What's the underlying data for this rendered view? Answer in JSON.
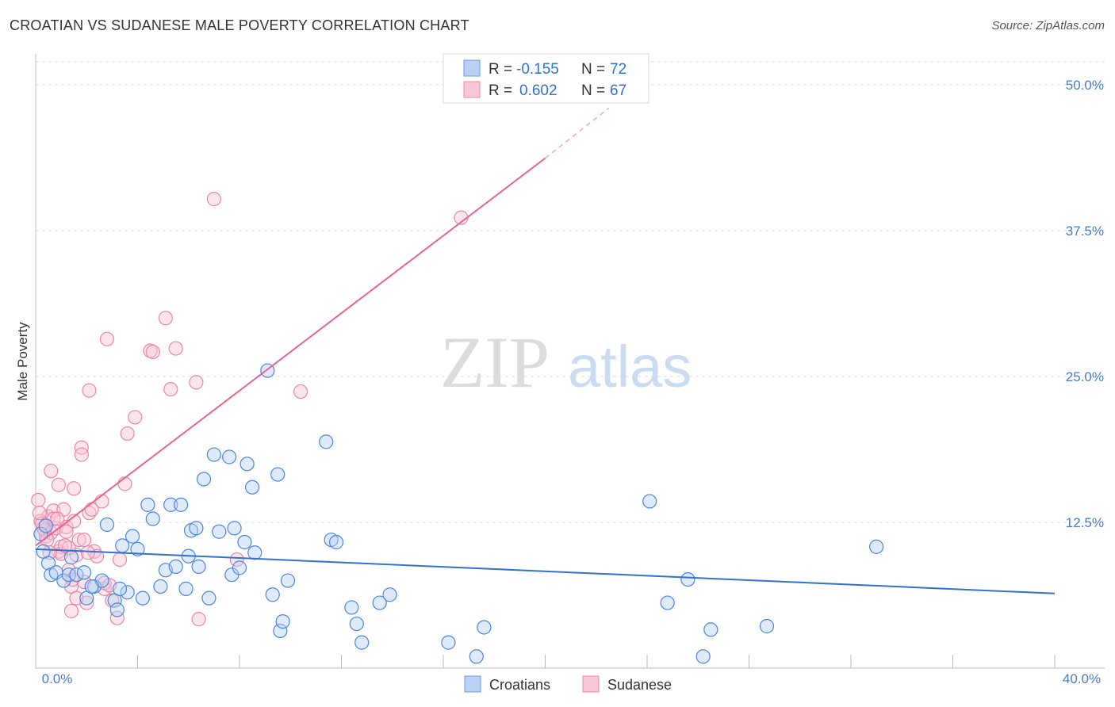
{
  "title": "CROATIAN VS SUDANESE MALE POVERTY CORRELATION CHART",
  "source": "Source: ZipAtlas.com",
  "watermark": {
    "zip": "ZIP",
    "atlas": "atlas"
  },
  "legend": {
    "r_label": "R =",
    "n_label": "N =",
    "rows": [
      {
        "name": "Croatians",
        "r": "-0.155",
        "n": "72"
      },
      {
        "name": "Sudanese",
        "r": "0.602",
        "n": "67"
      }
    ]
  },
  "chart_data": {
    "type": "scatter",
    "title": "CROATIAN VS SUDANESE MALE POVERTY CORRELATION CHART",
    "xlabel": "",
    "ylabel": "Male Poverty",
    "xlim": [
      0,
      40
    ],
    "ylim": [
      0,
      52.5
    ],
    "x_tick_labels": [
      {
        "value": 0,
        "label": "0.0%"
      },
      {
        "value": 40,
        "label": "40.0%"
      }
    ],
    "y_tick_labels": [
      {
        "value": 12.5,
        "label": "12.5%"
      },
      {
        "value": 25,
        "label": "25.0%"
      },
      {
        "value": 37.5,
        "label": "37.5%"
      },
      {
        "value": 50,
        "label": "50.0%"
      }
    ],
    "colors": {
      "Croatians": "#4a86e0",
      "Sudanese": "#ee7aa0"
    },
    "series": [
      {
        "name": "Croatians",
        "trend": {
          "x0": 0,
          "y0": 10.2,
          "x1": 40,
          "y1": 6.4
        },
        "points": [
          [
            0.5,
            9.0
          ],
          [
            0.3,
            10.0
          ],
          [
            0.6,
            8.0
          ],
          [
            0.8,
            8.2
          ],
          [
            1.1,
            7.5
          ],
          [
            1.3,
            8.0
          ],
          [
            1.6,
            8.0
          ],
          [
            1.9,
            8.2
          ],
          [
            1.4,
            9.5
          ],
          [
            2.3,
            7.0
          ],
          [
            2.0,
            6.0
          ],
          [
            2.6,
            7.5
          ],
          [
            2.8,
            12.3
          ],
          [
            3.1,
            5.8
          ],
          [
            3.2,
            5.0
          ],
          [
            3.6,
            6.5
          ],
          [
            3.3,
            6.8
          ],
          [
            3.4,
            10.5
          ],
          [
            3.8,
            11.3
          ],
          [
            4.2,
            6.0
          ],
          [
            4.0,
            10.2
          ],
          [
            4.6,
            12.8
          ],
          [
            4.4,
            14.0
          ],
          [
            4.9,
            7.0
          ],
          [
            5.1,
            8.4
          ],
          [
            5.3,
            14.0
          ],
          [
            5.5,
            8.7
          ],
          [
            5.7,
            14.0
          ],
          [
            5.9,
            6.8
          ],
          [
            6.0,
            9.6
          ],
          [
            6.1,
            11.8
          ],
          [
            6.3,
            12.0
          ],
          [
            6.4,
            8.7
          ],
          [
            6.6,
            16.2
          ],
          [
            6.8,
            6.0
          ],
          [
            7.0,
            18.3
          ],
          [
            7.2,
            11.7
          ],
          [
            7.6,
            18.1
          ],
          [
            7.7,
            8.0
          ],
          [
            7.8,
            12.0
          ],
          [
            8.0,
            8.6
          ],
          [
            8.2,
            10.8
          ],
          [
            8.3,
            17.5
          ],
          [
            8.5,
            15.5
          ],
          [
            8.6,
            9.9
          ],
          [
            9.1,
            25.5
          ],
          [
            9.3,
            6.3
          ],
          [
            9.5,
            16.6
          ],
          [
            9.6,
            3.2
          ],
          [
            9.7,
            4.0
          ],
          [
            9.9,
            7.5
          ],
          [
            11.4,
            19.4
          ],
          [
            11.6,
            11.0
          ],
          [
            11.8,
            10.8
          ],
          [
            12.4,
            5.2
          ],
          [
            12.6,
            3.8
          ],
          [
            12.8,
            2.2
          ],
          [
            13.5,
            5.6
          ],
          [
            13.9,
            6.3
          ],
          [
            16.2,
            2.2
          ],
          [
            17.6,
            3.5
          ],
          [
            17.3,
            1.0
          ],
          [
            24.1,
            14.3
          ],
          [
            24.8,
            5.6
          ],
          [
            25.6,
            7.6
          ],
          [
            26.2,
            1.0
          ],
          [
            26.5,
            3.3
          ],
          [
            28.7,
            3.6
          ],
          [
            33.0,
            10.4
          ],
          [
            0.2,
            11.5
          ],
          [
            0.4,
            12.2
          ],
          [
            2.2,
            7.0
          ]
        ]
      },
      {
        "name": "Sudanese",
        "trend": {
          "x0": 0,
          "y0": 10.5,
          "x1": 20,
          "y1": 43.7,
          "dash_x1": 22.5,
          "dash_y1": 48.0
        },
        "points": [
          [
            0.1,
            14.4
          ],
          [
            0.2,
            12.6
          ],
          [
            0.3,
            12.0
          ],
          [
            0.4,
            11.3
          ],
          [
            0.5,
            13.0
          ],
          [
            0.6,
            11.6
          ],
          [
            0.6,
            16.9
          ],
          [
            0.7,
            13.5
          ],
          [
            0.8,
            12.0
          ],
          [
            0.9,
            10.0
          ],
          [
            0.9,
            15.7
          ],
          [
            1.0,
            10.4
          ],
          [
            1.1,
            13.6
          ],
          [
            1.2,
            12.1
          ],
          [
            1.2,
            11.7
          ],
          [
            1.3,
            8.4
          ],
          [
            1.4,
            7.0
          ],
          [
            1.4,
            4.9
          ],
          [
            1.5,
            12.6
          ],
          [
            1.5,
            15.4
          ],
          [
            1.6,
            9.7
          ],
          [
            1.7,
            11.0
          ],
          [
            1.8,
            18.9
          ],
          [
            1.8,
            18.3
          ],
          [
            1.9,
            11.0
          ],
          [
            2.0,
            5.6
          ],
          [
            2.1,
            23.8
          ],
          [
            2.1,
            13.3
          ],
          [
            2.2,
            13.6
          ],
          [
            2.3,
            10.0
          ],
          [
            2.4,
            9.6
          ],
          [
            2.6,
            14.3
          ],
          [
            2.7,
            6.8
          ],
          [
            2.7,
            7.3
          ],
          [
            2.8,
            28.2
          ],
          [
            3.0,
            5.8
          ],
          [
            3.2,
            4.3
          ],
          [
            3.3,
            9.3
          ],
          [
            3.5,
            15.8
          ],
          [
            3.6,
            20.1
          ],
          [
            3.9,
            21.5
          ],
          [
            4.5,
            27.2
          ],
          [
            4.6,
            27.1
          ],
          [
            5.1,
            30.0
          ],
          [
            5.3,
            23.9
          ],
          [
            5.5,
            27.4
          ],
          [
            6.3,
            24.5
          ],
          [
            6.4,
            4.2
          ],
          [
            7.0,
            40.2
          ],
          [
            7.9,
            9.3
          ],
          [
            10.4,
            23.7
          ],
          [
            16.7,
            38.6
          ],
          [
            0.35,
            11.8
          ],
          [
            0.45,
            11.0
          ],
          [
            0.7,
            12.8
          ],
          [
            1.0,
            9.8
          ],
          [
            1.3,
            10.3
          ],
          [
            1.6,
            6.0
          ],
          [
            1.9,
            7.4
          ],
          [
            0.25,
            12.4
          ],
          [
            0.55,
            9.9
          ],
          [
            0.85,
            12.8
          ],
          [
            1.15,
            10.5
          ],
          [
            2.05,
            9.9
          ],
          [
            2.9,
            7.1
          ],
          [
            1.45,
            7.6
          ],
          [
            0.15,
            13.3
          ]
        ]
      }
    ]
  }
}
